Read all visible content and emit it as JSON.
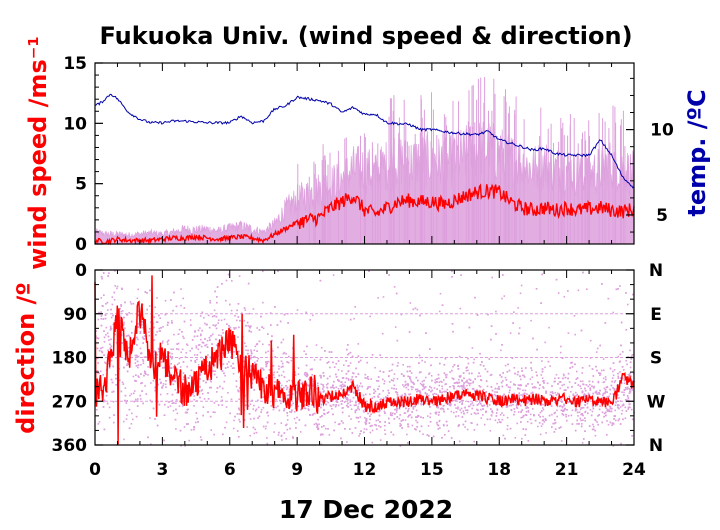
{
  "chart_data": [
    {
      "type": "line",
      "title": "Fukuoka Univ. (wind speed & direction)",
      "ylabel": "wind speed /ms⁻¹",
      "y2label": "temp. /ºC",
      "xlim": [
        0,
        24
      ],
      "ylim": [
        0,
        15
      ],
      "y2lim": [
        3.3,
        13.9
      ],
      "x_ticks": [
        "0",
        "3",
        "6",
        "9",
        "12",
        "15",
        "18",
        "21",
        "24"
      ],
      "y_ticks": [
        "0",
        "5",
        "10",
        "15"
      ],
      "y2_ticks": [
        "5",
        "10"
      ],
      "series": [
        {
          "kind": "gust",
          "color": "#dda0dd",
          "x": [
            0,
            0.5,
            1,
            1.5,
            2,
            2.5,
            3,
            3.5,
            4,
            4.5,
            5,
            5.5,
            6,
            6.5,
            7,
            7.5,
            8,
            8.5,
            9,
            9.5,
            10,
            10.5,
            11,
            11.5,
            12,
            12.5,
            13,
            13.5,
            14,
            14.5,
            15,
            15.5,
            16,
            16.5,
            17,
            17.5,
            18,
            18.5,
            19,
            19.5,
            20,
            20.5,
            21,
            21.5,
            22,
            22.5,
            23,
            23.5,
            24
          ],
          "values": [
            1.2,
            1.0,
            1.0,
            0.9,
            1.0,
            1.1,
            1.0,
            1.2,
            1.5,
            1.4,
            1.5,
            1.3,
            1.6,
            1.8,
            1.5,
            1.2,
            2.0,
            3.5,
            4.5,
            5.0,
            5.5,
            6.0,
            6.5,
            7.5,
            7.5,
            7.0,
            8.0,
            8.5,
            8.0,
            8.5,
            8.5,
            8.0,
            8.5,
            9.0,
            9.5,
            9.5,
            9.0,
            8.5,
            8.0,
            7.5,
            8.0,
            7.5,
            7.5,
            7.0,
            7.0,
            7.5,
            8.0,
            7.5,
            7.0
          ]
        },
        {
          "kind": "wind speed",
          "color": "#ff0000",
          "x": [
            0,
            0.5,
            1,
            1.5,
            2,
            2.5,
            3,
            3.5,
            4,
            4.5,
            5,
            5.5,
            6,
            6.5,
            7,
            7.5,
            8,
            8.5,
            9,
            9.5,
            10,
            10.5,
            11,
            11.5,
            12,
            12.5,
            13,
            13.5,
            14,
            14.5,
            15,
            15.5,
            16,
            16.5,
            17,
            17.5,
            18,
            18.5,
            19,
            19.5,
            20,
            20.5,
            21,
            21.5,
            22,
            22.5,
            23,
            23.5,
            24
          ],
          "values": [
            0.3,
            0.2,
            0.4,
            0.3,
            0.3,
            0.3,
            0.4,
            0.5,
            0.5,
            0.6,
            0.5,
            0.4,
            0.5,
            0.6,
            0.5,
            0.3,
            0.8,
            1.3,
            1.8,
            2.0,
            2.2,
            3.0,
            3.5,
            4.0,
            2.8,
            2.5,
            3.0,
            3.5,
            3.6,
            3.5,
            3.5,
            3.3,
            3.6,
            4.0,
            4.3,
            4.4,
            4.3,
            3.5,
            3.0,
            2.8,
            3.0,
            2.8,
            3.0,
            2.8,
            2.9,
            3.0,
            2.8,
            2.7,
            2.9
          ]
        },
        {
          "kind": "temperature",
          "color": "#0000aa",
          "axis": "y2",
          "x": [
            0,
            0.3,
            0.7,
            1,
            1.5,
            2,
            2.5,
            3,
            3.5,
            4,
            5,
            6,
            6.5,
            7,
            7.5,
            8,
            8.5,
            9,
            9.5,
            10,
            10.5,
            11,
            11.5,
            12,
            12.5,
            13,
            14,
            14.5,
            15,
            16,
            17,
            17.5,
            18,
            18.5,
            19,
            19.5,
            20,
            20.5,
            21,
            21.5,
            22,
            22.5,
            23,
            23.5,
            24
          ],
          "values": [
            11.4,
            11.6,
            12.1,
            11.8,
            11.0,
            10.6,
            10.4,
            10.4,
            10.5,
            10.5,
            10.4,
            10.4,
            10.8,
            10.4,
            10.5,
            11.2,
            11.4,
            11.9,
            11.8,
            11.7,
            11.5,
            11.0,
            11.3,
            10.9,
            10.9,
            10.4,
            10.3,
            10.0,
            10.0,
            9.8,
            9.7,
            9.9,
            9.4,
            9.2,
            9.0,
            8.8,
            8.9,
            8.6,
            8.5,
            8.5,
            8.5,
            9.4,
            8.5,
            7.2,
            6.6
          ]
        }
      ]
    },
    {
      "type": "scatter",
      "xlabel": "17 Dec 2022",
      "ylabel": "direction /º",
      "xlim": [
        0,
        24
      ],
      "ylim": [
        360,
        0
      ],
      "x_ticks": [
        "0",
        "3",
        "6",
        "9",
        "12",
        "15",
        "18",
        "21",
        "24"
      ],
      "y_ticks": [
        "0",
        "90",
        "180",
        "270",
        "360"
      ],
      "y2_ticks": [
        "N",
        "E",
        "S",
        "W",
        "N"
      ],
      "series": [
        {
          "kind": "direction (mean)",
          "color": "#ff0000",
          "x": [
            0,
            0.5,
            1,
            1.5,
            2,
            2.5,
            3,
            3.5,
            4,
            4.5,
            5,
            5.5,
            6,
            6.5,
            7,
            7.5,
            8,
            8.5,
            9,
            9.5,
            10,
            10.5,
            11,
            11.5,
            12,
            12.5,
            13,
            13.5,
            14,
            14.5,
            15,
            15.5,
            16,
            16.5,
            17,
            17.5,
            18,
            18.5,
            19,
            19.5,
            20,
            20.5,
            21,
            21.5,
            22,
            22.5,
            23,
            23.5,
            24
          ],
          "values": [
            250,
            230,
            100,
            180,
            80,
            200,
            180,
            220,
            250,
            230,
            200,
            180,
            150,
            180,
            220,
            240,
            250,
            260,
            260,
            250,
            270,
            260,
            250,
            240,
            280,
            280,
            275,
            270,
            270,
            265,
            270,
            265,
            260,
            255,
            260,
            265,
            270,
            265,
            270,
            265,
            268,
            270,
            265,
            270,
            270,
            265,
            280,
            220,
            240
          ]
        },
        {
          "kind": "direction (instantaneous)",
          "color": "#dda0dd",
          "x": [
            0,
            0.5,
            1,
            1.5,
            2,
            2.5,
            3,
            3.5,
            4,
            4.5,
            5,
            5.5,
            6,
            6.5,
            7,
            7.5,
            8,
            8.5,
            9,
            9.5,
            10,
            10.5,
            11,
            11.5,
            12,
            12.5,
            13,
            13.5,
            14,
            14.5,
            15,
            15.5,
            16,
            16.5,
            17,
            17.5,
            18,
            18.5,
            19,
            19.5,
            20,
            20.5,
            21,
            21.5,
            22,
            22.5,
            23,
            23.5,
            24
          ],
          "values": [
            180,
            160,
            120,
            190,
            150,
            200,
            170,
            210,
            230,
            220,
            190,
            170,
            160,
            190,
            210,
            230,
            240,
            250,
            255,
            250,
            265,
            255,
            250,
            245,
            275,
            275,
            270,
            268,
            268,
            262,
            268,
            262,
            258,
            255,
            258,
            262,
            266,
            262,
            266,
            262,
            265,
            268,
            262,
            266,
            268,
            262,
            270,
            230,
            240
          ],
          "spread": [
            140,
            140,
            150,
            140,
            140,
            140,
            150,
            140,
            130,
            130,
            140,
            140,
            140,
            130,
            120,
            120,
            110,
            90,
            80,
            80,
            80,
            80,
            80,
            90,
            70,
            70,
            70,
            70,
            70,
            70,
            70,
            70,
            75,
            75,
            70,
            70,
            70,
            70,
            70,
            70,
            70,
            70,
            70,
            70,
            70,
            70,
            80,
            100,
            90
          ]
        }
      ]
    }
  ]
}
